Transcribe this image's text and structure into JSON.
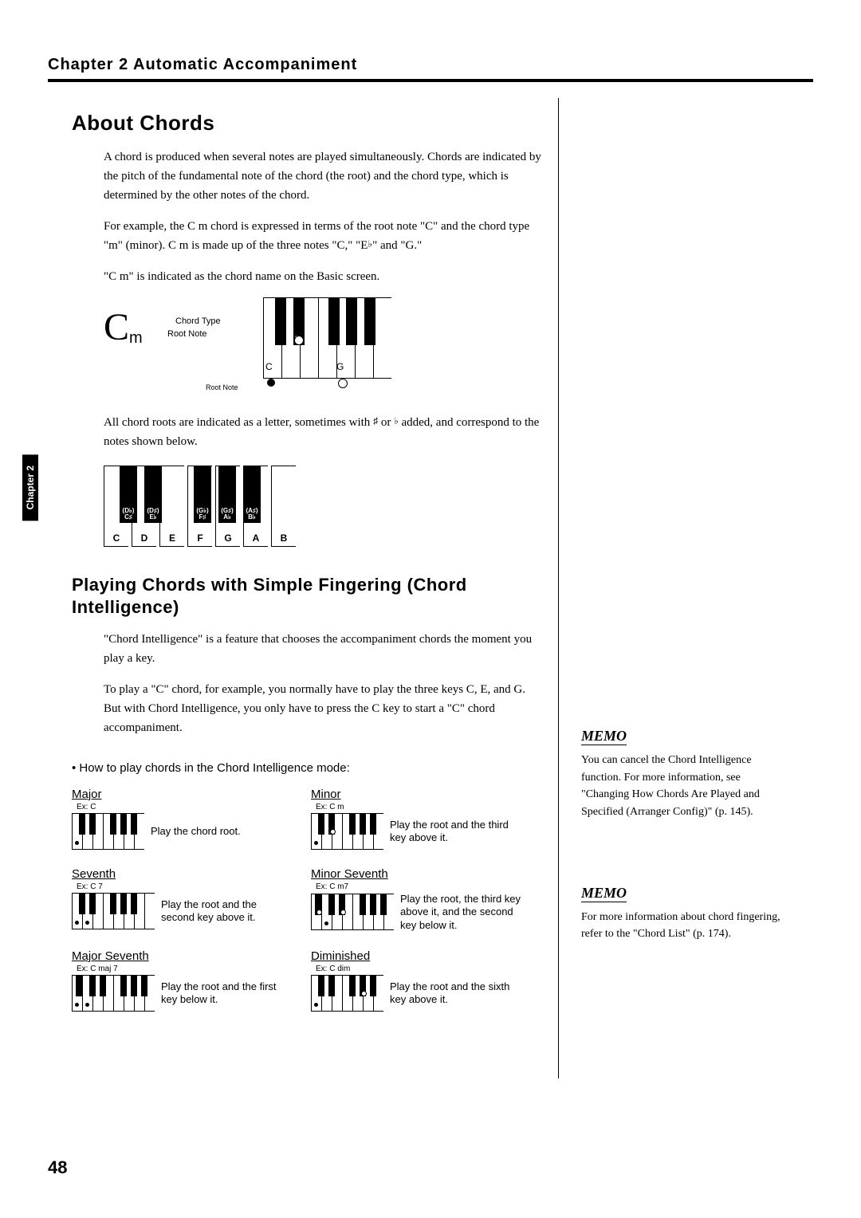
{
  "header": {
    "chapter_title": "Chapter 2  Automatic Accompaniment",
    "side_tab": "Chapter 2"
  },
  "section1": {
    "title": "About Chords",
    "p1": "A chord is produced when several notes are played simultaneously. Chords are indicated by the pitch of the fundamental note of the chord (the root) and the chord type, which is determined by the other notes of the chord.",
    "p2_a": "For example, the C m chord is expressed in terms of the root note \"C\" and the chord type \"m\" (minor). C m is made up of the three notes \"C,\" \"E",
    "p2_flat": "♭",
    "p2_b": "\" and \"G.\"",
    "p3": "\"C m\" is indicated as the chord name on the Basic screen.",
    "fig": {
      "big_c": "C",
      "big_m": "m",
      "chord_type_lbl": "Chord Type",
      "root_note_lbl": "Root Note",
      "root_note_leader": "Root Note",
      "keys": {
        "eb": "E♭",
        "c": "C",
        "g": "G"
      }
    },
    "p4_a": "All chord roots are indicated as a letter, sometimes with ",
    "p4_sharp": "♯",
    "p4_mid": " or ",
    "p4_flat": "♭",
    "p4_b": " added, and correspond to the notes shown below.",
    "roots": {
      "white": [
        "C",
        "D",
        "E",
        "F",
        "G",
        "A",
        "B"
      ],
      "black_top": [
        "(D♭)",
        "(D♯)",
        "(G♭)",
        "(G♯)",
        "(A♯)"
      ],
      "black_bot": [
        "C♯",
        "E♭",
        "F♯",
        "A♭",
        "B♭"
      ]
    }
  },
  "section2": {
    "title": "Playing Chords with Simple Fingering (Chord Intelligence)",
    "p1": "\"Chord Intelligence\" is a feature that chooses the accompaniment chords the moment you play a key.",
    "p2": "To play a \"C\" chord, for example, you normally have to play the three keys C, E, and G. But with Chord Intelligence, you only have to press the C key to start a \"C\" chord accompaniment.",
    "howto": "• How to play chords in the Chord Intelligence mode:",
    "chords": [
      {
        "title": "Major",
        "ex": "Ex: C",
        "desc": "Play the chord root.",
        "dots_w": [
          0
        ],
        "dots_b": [],
        "extra_white": 0
      },
      {
        "title": "Minor",
        "ex": "Ex: C m",
        "desc": "Play the root and the third key above it.",
        "dots_w": [
          0
        ],
        "dots_b": [
          1
        ],
        "extra_white": 0
      },
      {
        "title": "Seventh",
        "ex": "Ex: C 7",
        "desc": "Play the root and the second key above it.",
        "dots_w": [
          0,
          1
        ],
        "dots_b": [],
        "extra_white": 1
      },
      {
        "title": "Minor Seventh",
        "ex": "Ex: C m7",
        "desc": "Play the root, the third key above it, and the second key below it.",
        "dots_w": [
          0
        ],
        "dots_b": [
          1
        ],
        "ext_left": 1,
        "dots_ext_b": [
          0
        ]
      },
      {
        "title": "Major Seventh",
        "ex": "Ex: C maj 7",
        "desc": "Play the root and the first key below it.",
        "dots_w": [
          0
        ],
        "dots_b": [],
        "ext_left": 1,
        "dots_ext_w": [
          0
        ]
      },
      {
        "title": "Diminished",
        "ex": "Ex: C dim",
        "desc": "Play the root and the sixth key above it.",
        "dots_w": [
          0
        ],
        "dots_b": [
          3
        ],
        "extra_white": 0
      }
    ]
  },
  "margin": {
    "memo_label": "MEMO",
    "memo1": "You can cancel the Chord Intelligence function. For more information, see \"Changing How Chords Are Played and Specified (Arranger Config)\" (p. 145).",
    "memo2": "For more information about chord fingering, refer to the \"Chord List\" (p. 174)."
  },
  "page_number": "48"
}
